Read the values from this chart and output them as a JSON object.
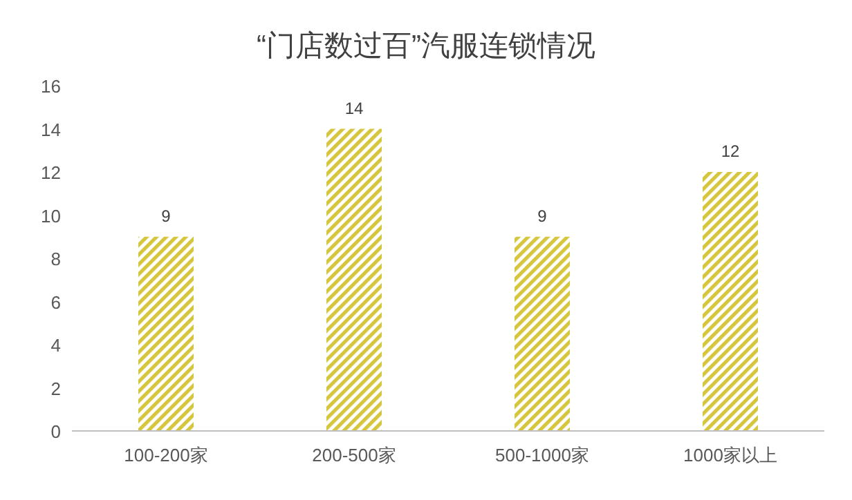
{
  "chart_data": {
    "type": "bar",
    "title": "“门店数过百”汽服连锁情况",
    "categories": [
      "100-200家",
      "200-500家",
      "500-1000家",
      "1000家以上"
    ],
    "values": [
      9,
      14,
      9,
      12
    ],
    "color": "#d6c63e",
    "ylim": [
      0,
      16
    ],
    "yticks": [
      0,
      2,
      4,
      6,
      8,
      10,
      12,
      14,
      16
    ],
    "grid": false,
    "data_labels": true
  }
}
